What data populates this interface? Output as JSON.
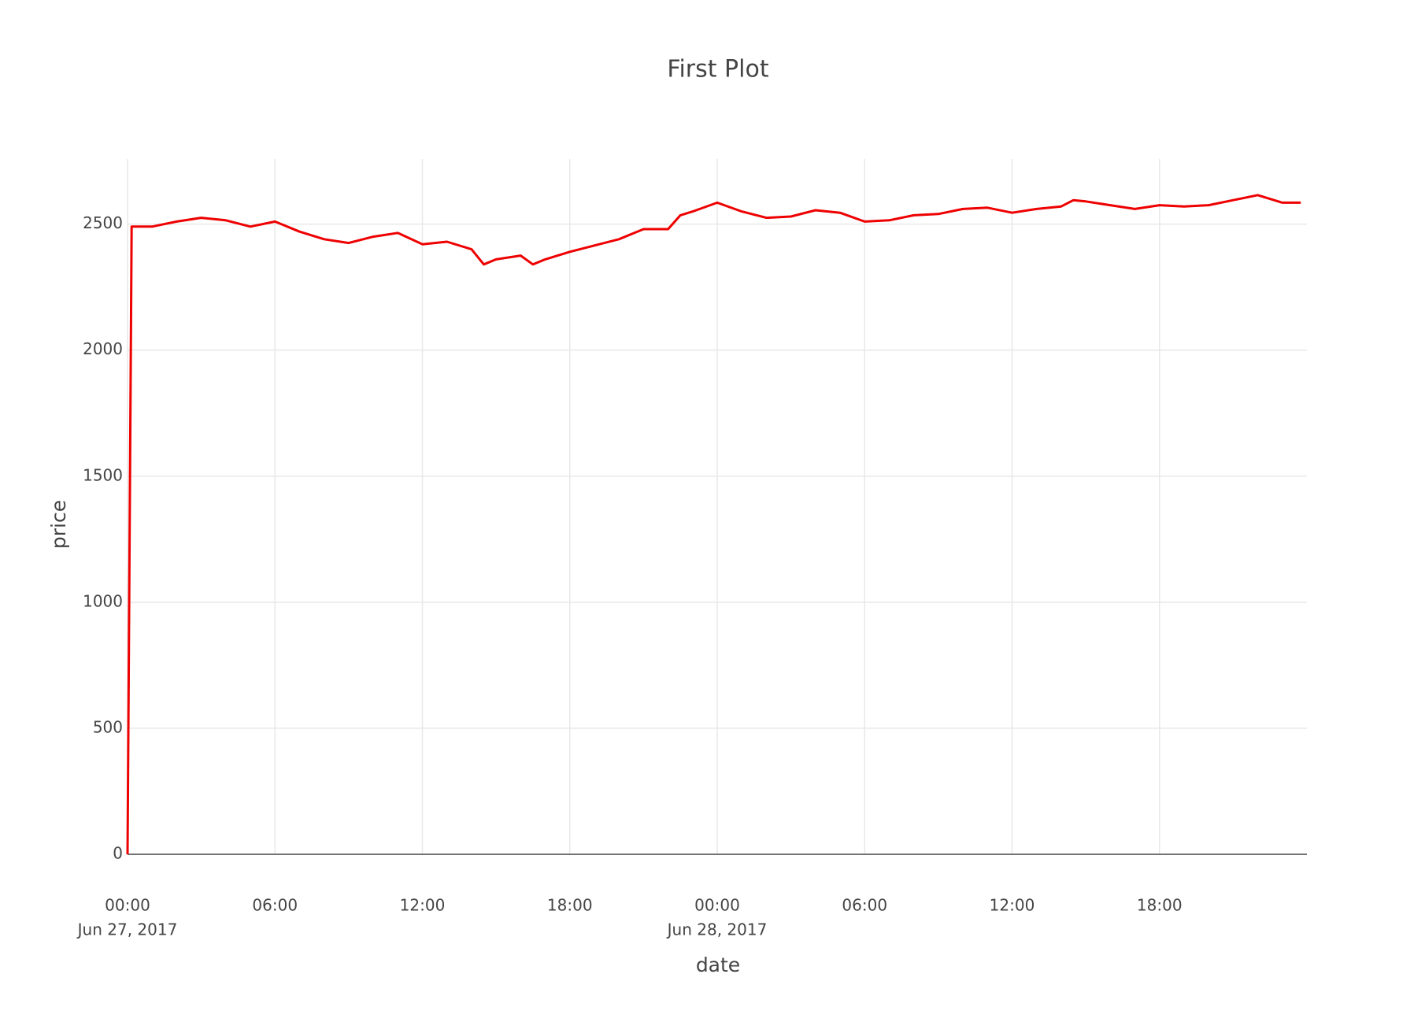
{
  "chart_data": {
    "type": "line",
    "title": "First Plot",
    "x_label": "date",
    "y_label": "price",
    "x": [
      "2017-06-27 00:00",
      "2017-06-27 00:10",
      "2017-06-27 01:00",
      "2017-06-27 02:00",
      "2017-06-27 03:00",
      "2017-06-27 04:00",
      "2017-06-27 05:00",
      "2017-06-27 06:00",
      "2017-06-27 07:00",
      "2017-06-27 08:00",
      "2017-06-27 09:00",
      "2017-06-27 10:00",
      "2017-06-27 11:00",
      "2017-06-27 12:00",
      "2017-06-27 13:00",
      "2017-06-27 14:00",
      "2017-06-27 14:30",
      "2017-06-27 15:00",
      "2017-06-27 16:00",
      "2017-06-27 16:30",
      "2017-06-27 17:00",
      "2017-06-27 18:00",
      "2017-06-27 19:00",
      "2017-06-27 20:00",
      "2017-06-27 21:00",
      "2017-06-27 22:00",
      "2017-06-27 22:30",
      "2017-06-27 23:00",
      "2017-06-28 00:00",
      "2017-06-28 01:00",
      "2017-06-28 02:00",
      "2017-06-28 03:00",
      "2017-06-28 04:00",
      "2017-06-28 05:00",
      "2017-06-28 06:00",
      "2017-06-28 07:00",
      "2017-06-28 08:00",
      "2017-06-28 09:00",
      "2017-06-28 10:00",
      "2017-06-28 11:00",
      "2017-06-28 12:00",
      "2017-06-28 13:00",
      "2017-06-28 14:00",
      "2017-06-28 14:30",
      "2017-06-28 15:00",
      "2017-06-28 16:00",
      "2017-06-28 17:00",
      "2017-06-28 18:00",
      "2017-06-28 19:00",
      "2017-06-28 20:00",
      "2017-06-28 21:00",
      "2017-06-28 22:00",
      "2017-06-28 23:00",
      "2017-06-28 23:45"
    ],
    "series": [
      {
        "name": "price",
        "color": "#ee0000",
        "values": [
          0,
          2490,
          2490,
          2510,
          2525,
          2515,
          2490,
          2510,
          2470,
          2440,
          2425,
          2450,
          2465,
          2420,
          2430,
          2400,
          2340,
          2360,
          2375,
          2340,
          2360,
          2390,
          2415,
          2440,
          2480,
          2480,
          2535,
          2550,
          2585,
          2550,
          2525,
          2530,
          2555,
          2545,
          2510,
          2515,
          2535,
          2540,
          2560,
          2565,
          2545,
          2560,
          2570,
          2595,
          2590,
          2575,
          2560,
          2575,
          2570,
          2575,
          2595,
          2615,
          2585,
          2585
        ]
      }
    ],
    "xlim": [
      "2017-06-27 00:00",
      "2017-06-29 00:00"
    ],
    "xticks": [
      {
        "value": "2017-06-27 00:00",
        "label": [
          "00:00",
          "Jun 27, 2017"
        ]
      },
      {
        "value": "2017-06-27 06:00",
        "label": [
          "06:00"
        ]
      },
      {
        "value": "2017-06-27 12:00",
        "label": [
          "12:00"
        ]
      },
      {
        "value": "2017-06-27 18:00",
        "label": [
          "18:00"
        ]
      },
      {
        "value": "2017-06-28 00:00",
        "label": [
          "00:00",
          "Jun 28, 2017"
        ]
      },
      {
        "value": "2017-06-28 06:00",
        "label": [
          "06:00"
        ]
      },
      {
        "value": "2017-06-28 12:00",
        "label": [
          "12:00"
        ]
      },
      {
        "value": "2017-06-28 18:00",
        "label": [
          "18:00"
        ]
      }
    ],
    "ylim": [
      0,
      2758
    ],
    "yticks": [
      0,
      500,
      1000,
      1500,
      2000,
      2500
    ],
    "grid": true
  }
}
